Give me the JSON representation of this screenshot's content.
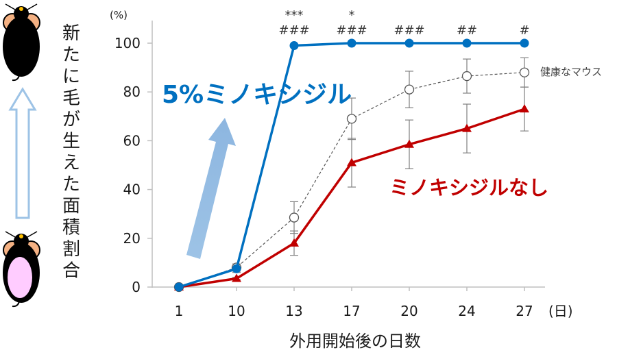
{
  "chart_data": {
    "type": "line",
    "x_categories": [
      "1",
      "10",
      "13",
      "17",
      "20",
      "24",
      "27"
    ],
    "y_unit": "(%)",
    "x_unit": "(日)",
    "xlabel": "外用開始後の日数",
    "ylabel": "新たに毛が生えた面積割合",
    "y_ticks": [
      "0",
      "20",
      "40",
      "60",
      "80",
      "100"
    ],
    "ylim": [
      0,
      100
    ],
    "grid": false,
    "series": [
      {
        "name": "5%ミノキシジル",
        "color": "#0070c0",
        "marker": "filled-circle",
        "line": "solid",
        "values": [
          0,
          7.5,
          99,
          100,
          100,
          100,
          100
        ],
        "err": [
          0,
          1.5,
          0,
          0,
          0,
          0,
          0
        ]
      },
      {
        "name": "健康なマウス",
        "color": "#555555",
        "marker": "open-circle",
        "line": "dashed",
        "values": [
          0,
          8,
          28.5,
          69,
          81,
          86.5,
          88
        ],
        "err": [
          0,
          1.5,
          6.5,
          8.5,
          7.5,
          7,
          6
        ]
      },
      {
        "name": "ミノキシジルなし",
        "color": "#c00000",
        "marker": "filled-triangle",
        "line": "solid",
        "values": [
          0,
          3.5,
          18,
          51,
          58.5,
          65,
          73
        ],
        "err": [
          0,
          0.5,
          5,
          10,
          10,
          10,
          9
        ]
      }
    ],
    "significance": [
      {
        "x": "13",
        "top": "***",
        "bottom": "###"
      },
      {
        "x": "17",
        "top": "*",
        "bottom": "###"
      },
      {
        "x": "20",
        "top": "",
        "bottom": "###"
      },
      {
        "x": "24",
        "top": "",
        "bottom": "##"
      },
      {
        "x": "27",
        "top": "",
        "bottom": "#"
      }
    ]
  },
  "illustration": {
    "top_mouse": "mouse-with-hair-icon",
    "bottom_mouse": "shaved-mouse-icon",
    "arrow": "up-arrow-icon"
  }
}
